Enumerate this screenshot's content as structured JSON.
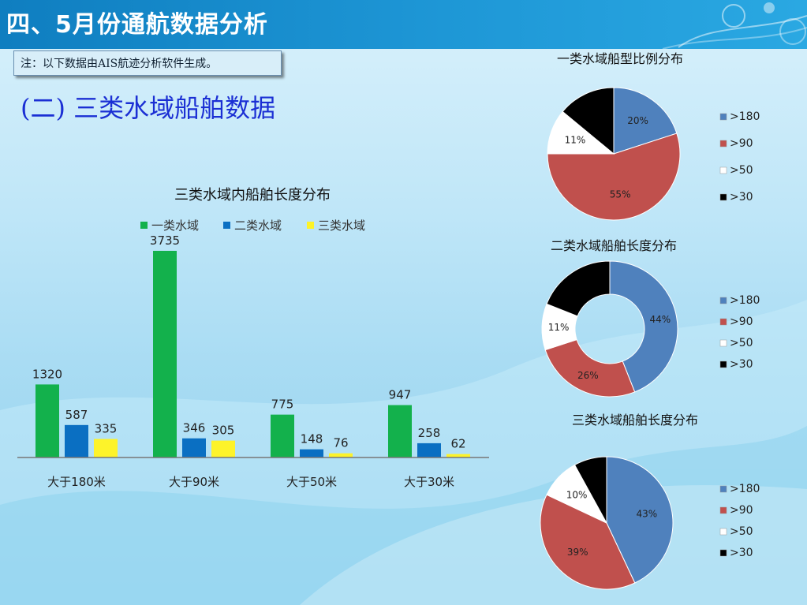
{
  "header": {
    "title": "四、5月份通航数据分析"
  },
  "note": {
    "text": "注：以下数据由AIS航迹分析软件生成。"
  },
  "section": {
    "title": "(二) 三类水域船舶数据"
  },
  "colors": {
    "green": "#13b14c",
    "blue": "#0a6fc2",
    "yellow": "#fdf32a",
    "pie_blue": "#4f81bd",
    "pie_red": "#c0504d",
    "pie_white": "#ffffff",
    "pie_black": "#000000"
  },
  "chart_data": [
    {
      "type": "bar",
      "title": "三类水域内船舶长度分布",
      "categories": [
        "大于180米",
        "大于90米",
        "大于50米",
        "大于30米"
      ],
      "series": [
        {
          "name": "一类水域",
          "values": [
            1320,
            3735,
            775,
            947
          ]
        },
        {
          "name": "二类水域",
          "values": [
            587,
            346,
            148,
            258
          ]
        },
        {
          "name": "三类水域",
          "values": [
            335,
            305,
            76,
            62
          ]
        }
      ],
      "ylim": [
        0,
        3735
      ],
      "legend": "top"
    },
    {
      "type": "pie",
      "title": "一类水域船型比例分布",
      "labels": [
        ">180",
        ">90",
        ">50",
        ">30"
      ],
      "values": [
        20,
        55,
        11,
        14
      ],
      "data_labels": [
        "20%",
        "55%",
        "11%",
        ""
      ],
      "legend": "right"
    },
    {
      "type": "pie",
      "title": "二类水域船舶长度分布",
      "style": "donut",
      "labels": [
        ">180",
        ">90",
        ">50",
        ">30"
      ],
      "values": [
        44,
        26,
        11,
        19
      ],
      "data_labels": [
        "44%",
        "26%",
        "11%",
        ""
      ],
      "legend": "right"
    },
    {
      "type": "pie",
      "title": "三类水域船舶长度分布",
      "labels": [
        ">180",
        ">90",
        ">50",
        ">30"
      ],
      "values": [
        43,
        39,
        10,
        8
      ],
      "data_labels": [
        "43%",
        "39%",
        "10%",
        ""
      ],
      "legend": "right"
    }
  ]
}
